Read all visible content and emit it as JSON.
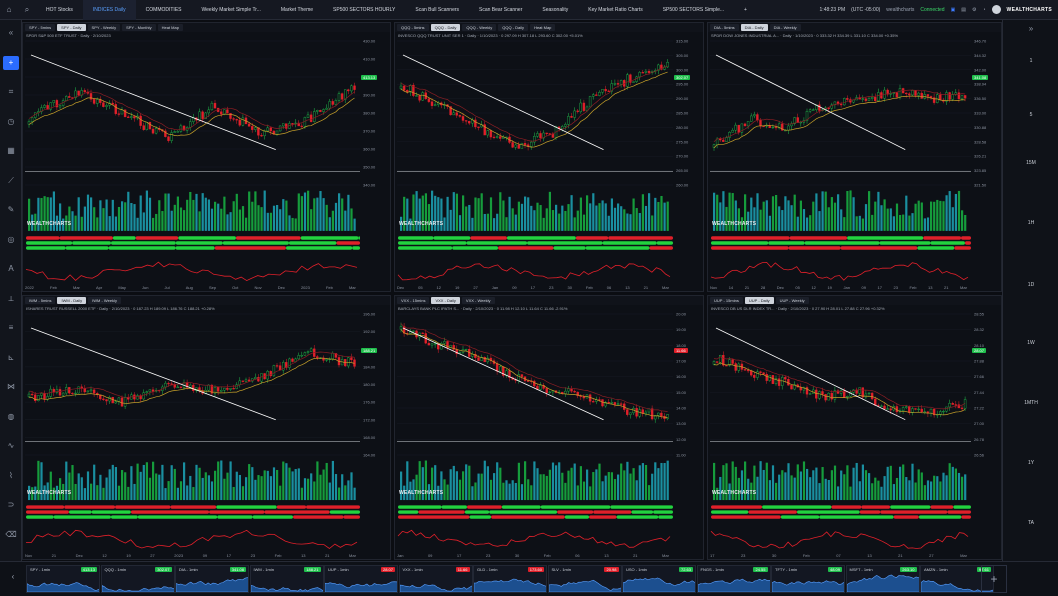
{
  "topbar": {
    "tabs": [
      {
        "label": "HOT Stocks",
        "active": false
      },
      {
        "label": "INDICES Daily",
        "active": true
      },
      {
        "label": "COMMODITIES",
        "active": false
      },
      {
        "label": "Weekly Market Simple Tr...",
        "active": false
      },
      {
        "label": "Market Theme",
        "active": false
      },
      {
        "label": "SP500 SECTORS HOURLY",
        "active": false
      },
      {
        "label": "Scan Bull Scanners",
        "active": false
      },
      {
        "label": "Scan Bear Scanner",
        "active": false
      },
      {
        "label": "Seasonality",
        "active": false
      },
      {
        "label": "Key Market Ratio Charts",
        "active": false
      },
      {
        "label": "SP500 SECTORS Simple...",
        "active": false
      }
    ],
    "add_label": "+",
    "clock": "1:48:23 PM",
    "timezone": "(UTC -05:00)",
    "user": "wealthcharts",
    "status": "Connected",
    "brand": "WEALTHCHARTS"
  },
  "leftbar": {
    "items": [
      {
        "icon": "collapse-icon",
        "glyph": "«"
      },
      {
        "icon": "crosshair-icon",
        "glyph": "+"
      },
      {
        "icon": "chart-type-icon",
        "glyph": "⌗"
      },
      {
        "icon": "clock-icon",
        "glyph": "◷"
      },
      {
        "icon": "calendar-icon",
        "glyph": "▦"
      },
      {
        "icon": "trend-line-icon",
        "glyph": "⟋"
      },
      {
        "icon": "pencil-icon",
        "glyph": "✎"
      },
      {
        "icon": "shapes-icon",
        "glyph": "◎"
      },
      {
        "icon": "text-icon",
        "glyph": "A"
      },
      {
        "icon": "ruler-icon",
        "glyph": "⟂"
      },
      {
        "icon": "fibonacci-icon",
        "glyph": "≡"
      },
      {
        "icon": "measure-icon",
        "glyph": "⊾"
      },
      {
        "icon": "pattern-icon",
        "glyph": "⋈"
      },
      {
        "icon": "gann-icon",
        "glyph": "◍"
      },
      {
        "icon": "indicator-icon",
        "glyph": "∿"
      },
      {
        "icon": "zigzag-icon",
        "glyph": "⌇"
      },
      {
        "icon": "magnet-icon",
        "glyph": "⊃"
      },
      {
        "icon": "trash-icon",
        "glyph": "⌫"
      }
    ]
  },
  "rightbar": {
    "intervals": [
      "1",
      "5",
      "15M",
      "1H",
      "1D",
      "1W",
      "1MTH",
      "1Y",
      "TA"
    ]
  },
  "panels": [
    {
      "tabs": [
        {
          "label": "SPY - 5mins",
          "active": false
        },
        {
          "label": "SPY - Daily",
          "active": true
        },
        {
          "label": "SPY - Weekly",
          "active": false
        },
        {
          "label": "SPY - Monthly",
          "active": false
        },
        {
          "label": "Heat Map",
          "active": false
        }
      ],
      "desc": "SPDR S&P 500 ETF TRUST · Daily · 2/10/2023",
      "price": "413.13",
      "price_color": "#1fbf4c",
      "axis": [
        "430.00",
        "410.00",
        "400.00",
        "390.00",
        "380.00",
        "370.00",
        "360.00",
        "350.00",
        "340.00"
      ],
      "xlabels": [
        "2022",
        "Feb",
        "Mar",
        "Apr",
        "May",
        "Jun",
        "Jul",
        "Aug",
        "Sep",
        "Oct",
        "Nov",
        "Dec",
        "2023",
        "Feb",
        "Mar"
      ],
      "watermark": "WEALTHCHARTS"
    },
    {
      "tabs": [
        {
          "label": "QQQ - 5mins",
          "active": false
        },
        {
          "label": "QQQ - Daily",
          "active": true
        },
        {
          "label": "QQQ - Weekly",
          "active": false
        },
        {
          "label": "QQQ - Daily",
          "active": false
        },
        {
          "label": "Heat Map",
          "active": false
        }
      ],
      "desc": "INVESCO QQQ TRUST UNIT SER 1 · Daily · 1/10/2023 · 0 297.09 H 307.18 L 293.60 C 302.00 +5.01%",
      "price": "302.07",
      "price_color": "#1fbf4c",
      "axis": [
        "315.00",
        "305.00",
        "300.00",
        "295.00",
        "290.00",
        "285.00",
        "280.00",
        "275.00",
        "270.00",
        "265.00",
        "260.00"
      ],
      "xlabels": [
        "Dec",
        "05",
        "12",
        "19",
        "27",
        "Jan",
        "09",
        "17",
        "23",
        "30",
        "Feb",
        "06",
        "13",
        "21",
        "Mar"
      ],
      "watermark": "WEALTHCHARTS"
    },
    {
      "tabs": [
        {
          "label": "DIA - 5mins",
          "active": false
        },
        {
          "label": "DIA - Daily",
          "active": true
        },
        {
          "label": "DIA - Weekly",
          "active": false
        }
      ],
      "desc": "SPDR DOW JONES INDUSTRIAL A... · Daily · 1/10/2023 · 0 333.32 H 334.39 L 331.10 C 334.00 +0.35%",
      "price": "341.08",
      "price_color": "#1fbf4c",
      "axis": [
        "346.70",
        "344.32",
        "342.00",
        "338.94",
        "336.50",
        "333.00",
        "330.88",
        "328.58",
        "326.21",
        "323.85",
        "321.50"
      ],
      "xlabels": [
        "Nov",
        "14",
        "21",
        "28",
        "Dec",
        "05",
        "12",
        "19",
        "Jan",
        "09",
        "17",
        "23",
        "Feb",
        "13",
        "21",
        "Mar"
      ],
      "watermark": "WEALTHCHARTS"
    },
    {
      "tabs": [
        {
          "label": "IWM - 5mins",
          "active": false
        },
        {
          "label": "IWM - Daily",
          "active": true
        },
        {
          "label": "IWM - Weekly",
          "active": false
        }
      ],
      "desc": "ISHARES TRUST RUSSELL 2000 ETF · Daily · 2/10/2023 · 0 187.23 H 189.09 L 186.76 C 188.21 +0.28%",
      "price": "188.21",
      "price_color": "#1fbf4c",
      "axis": [
        "196.00",
        "192.00",
        "188.00",
        "184.00",
        "180.00",
        "176.00",
        "172.00",
        "168.00",
        "164.00"
      ],
      "xlabels": [
        "Nov",
        "21",
        "Dec",
        "12",
        "19",
        "27",
        "2023",
        "09",
        "17",
        "23",
        "Feb",
        "13",
        "21",
        "Mar"
      ],
      "watermark": "WEALTHCHARTS"
    },
    {
      "tabs": [
        {
          "label": "VXX - 15mins",
          "active": false
        },
        {
          "label": "VXX - Daily",
          "active": true
        },
        {
          "label": "VXX - Weekly",
          "active": false
        }
      ],
      "desc": "BARCLAYS BANK PLC IPATH S...  · Daily · 2/10/2023 · 0 11.98 H 12.10 L 11.64 C 11.66 -2.91%",
      "price": "11.66",
      "price_color": "#e0202a",
      "axis": [
        "20.00",
        "19.00",
        "18.00",
        "17.00",
        "16.00",
        "15.00",
        "14.00",
        "13.00",
        "12.00",
        "11.00"
      ],
      "xlabels": [
        "Jan",
        "09",
        "17",
        "23",
        "30",
        "Feb",
        "06",
        "13",
        "21",
        "Mar"
      ],
      "watermark": "WEALTHCHARTS"
    },
    {
      "tabs": [
        {
          "label": "UUP - 15mins",
          "active": false
        },
        {
          "label": "UUP - Daily",
          "active": true
        },
        {
          "label": "UUP - Weekly",
          "active": false
        }
      ],
      "desc": "INVESCO DB US DLR INDEX TR... · Daily · 2/10/2023 · 0 27.90 H 28.01 L 27.88 C 27.96 +0.32%",
      "price": "28.07",
      "price_color": "#1fbf4c",
      "axis": [
        "28.55",
        "28.32",
        "28.10",
        "27.88",
        "27.66",
        "27.44",
        "27.22",
        "27.00",
        "26.78",
        "26.56"
      ],
      "xlabels": [
        "17",
        "23",
        "30",
        "Feb",
        "07",
        "13",
        "21",
        "27",
        "Mar"
      ],
      "watermark": "WEALTHCHARTS"
    }
  ],
  "bottombar": {
    "minis": [
      {
        "label": "SPY - 1min",
        "value": "413.13",
        "color": "#1fbf4c"
      },
      {
        "label": "QQQ - 1min",
        "value": "302.07",
        "color": "#1fbf4c"
      },
      {
        "label": "DIA - 1min",
        "value": "341.08",
        "color": "#1fbf4c"
      },
      {
        "label": "IWM - 1min",
        "value": "188.21",
        "color": "#1fbf4c"
      },
      {
        "label": "UUP - 1min",
        "value": "28.07",
        "color": "#e0202a"
      },
      {
        "label": "VXX - 1min",
        "value": "11.66",
        "color": "#e0202a"
      },
      {
        "label": "GLD - 1min",
        "value": "173.60",
        "color": "#e0202a"
      },
      {
        "label": "SLV - 1min",
        "value": "20.98",
        "color": "#e0202a"
      },
      {
        "label": "USO - 1min",
        "value": "72.63",
        "color": "#1fbf4c"
      },
      {
        "label": "FNGS - 1min",
        "value": "24.55",
        "color": "#1fbf4c"
      },
      {
        "label": "TFTY - 1min",
        "value": "48.09",
        "color": "#1fbf4c"
      },
      {
        "label": "MSFT - 1min",
        "value": "263.10",
        "color": "#1fbf4c"
      },
      {
        "label": "AMZN - 1min",
        "value": "97.61",
        "color": "#1fbf4c"
      }
    ],
    "add_label": "+"
  },
  "colors": {
    "up": "#1fbf4c",
    "down": "#e0202a",
    "accent": "#2b6cff",
    "teal": "#1aa0b0"
  }
}
